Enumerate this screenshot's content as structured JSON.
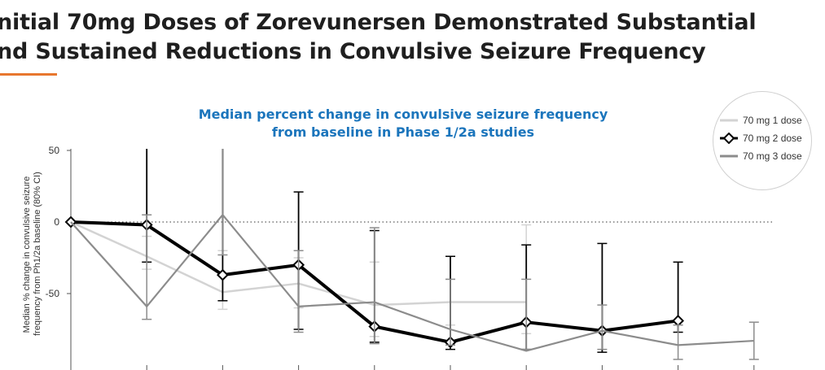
{
  "slide": {
    "title_line1": "nitial 70mg Doses of Zorevunersen Demonstrated Substantial",
    "title_line2": "nd Sustained Reductions in Convulsive Seizure Frequency",
    "accent_color": "#e8772e"
  },
  "chart_data": {
    "type": "line",
    "title_line1": "Median percent change in convulsive seizure frequency",
    "title_line2": "from baseline in Phase 1/2a studies",
    "title_color": "#1b75bc",
    "ylabel_line1": "Median % change in convulsive seizure",
    "ylabel_line2": "frequency from Ph1/2a baseline (80% CI)",
    "ylim": [
      -100,
      50
    ],
    "y_ticks": [
      50,
      0,
      -50
    ],
    "reference_line_y": 0,
    "x_points": 11,
    "legend_placement": "top-right",
    "series": [
      {
        "name": "70 mg 1 dose",
        "color": "#d3d3d3",
        "marker": "none",
        "x": [
          0,
          1,
          2,
          3,
          4,
          5,
          6
        ],
        "values": [
          0,
          -24,
          -49,
          -43,
          -58,
          -56,
          -56
        ],
        "ci_low": [
          0,
          -33,
          -61,
          -60,
          -80,
          -72,
          -78
        ],
        "ci_high": [
          0,
          -10,
          -20,
          -25,
          -28,
          -40,
          -2
        ]
      },
      {
        "name": "70 mg 2 dose",
        "color": "#000000",
        "marker": "diamond",
        "x": [
          0,
          1,
          2,
          3,
          4,
          5,
          6,
          7,
          8
        ],
        "values": [
          0,
          -2,
          -37,
          -30,
          -73,
          -84,
          -70,
          -76,
          -69
        ],
        "ci_low": [
          0,
          -28,
          -55,
          -75,
          -84,
          -89,
          -89,
          -91,
          -77
        ],
        "ci_high": [
          0,
          52,
          52,
          21,
          -6,
          -24,
          -16,
          -15,
          -28
        ]
      },
      {
        "name": "70 mg 3 dose",
        "color": "#8c8c8c",
        "marker": "none",
        "x": [
          0,
          1,
          2,
          3,
          4,
          5,
          6,
          7,
          8,
          9
        ],
        "values": [
          0,
          -59,
          5,
          -59,
          -56,
          -75,
          -90,
          -76,
          -86,
          -83
        ],
        "ci_low": [
          0,
          -68,
          -23,
          -77,
          -85,
          -86,
          -89,
          -89,
          -96,
          -96
        ],
        "ci_high": [
          0,
          5,
          52,
          -20,
          -4,
          -40,
          -40,
          -58,
          -72,
          -70
        ]
      }
    ]
  }
}
